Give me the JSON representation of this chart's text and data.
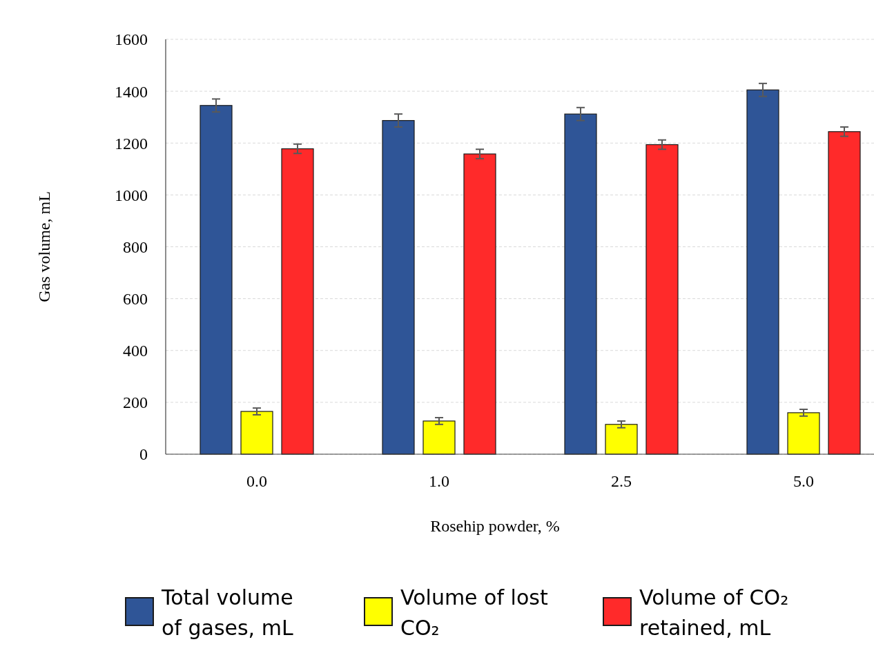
{
  "chart_data": {
    "type": "bar",
    "xlabel": "Rosehip powder, %",
    "ylabel": "Gas volume, mL",
    "categories": [
      "0.0",
      "1.0",
      "2.5",
      "5.0"
    ],
    "series": [
      {
        "name": "Total volume of gases, mL",
        "color": "#2f5597",
        "values": [
          1345,
          1287,
          1312,
          1405
        ],
        "errors": [
          25,
          25,
          25,
          25
        ]
      },
      {
        "name": "Volume of lost CO₂",
        "color": "#ffff00",
        "values": [
          165,
          128,
          115,
          160
        ],
        "errors": [
          13,
          13,
          13,
          13
        ]
      },
      {
        "name": "Volume of CO₂ retained, mL",
        "color": "#ff2a2a",
        "values": [
          1178,
          1158,
          1194,
          1244
        ],
        "errors": [
          18,
          18,
          18,
          18
        ]
      }
    ],
    "ylim": [
      0,
      1600
    ],
    "yticks": [
      0,
      200,
      400,
      600,
      800,
      1000,
      1200,
      1400,
      1600
    ],
    "grid": "y",
    "legend": "bottom"
  }
}
